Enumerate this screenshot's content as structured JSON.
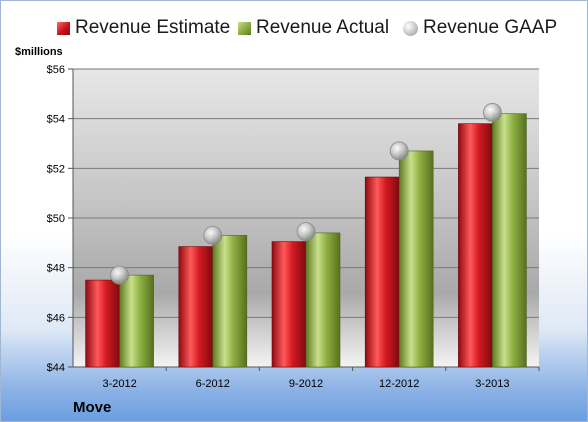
{
  "legend": {
    "estimate": "Revenue Estimate",
    "actual": "Revenue Actual",
    "gaap": "Revenue GAAP"
  },
  "unit_label": "$millions",
  "company": "Move",
  "colors": {
    "estimate": "#c8141c",
    "actual": "#8aab3e",
    "gaap": "#b5b5b5"
  },
  "chart_data": {
    "type": "bar",
    "title": "",
    "xlabel": "",
    "ylabel": "$millions",
    "categories": [
      "3-2012",
      "6-2012",
      "9-2012",
      "12-2012",
      "3-2013"
    ],
    "series": [
      {
        "name": "Revenue Estimate",
        "kind": "bar",
        "values": [
          47.5,
          48.85,
          49.05,
          51.65,
          53.8
        ]
      },
      {
        "name": "Revenue Actual",
        "kind": "bar",
        "values": [
          47.7,
          49.3,
          49.4,
          52.7,
          54.2
        ]
      },
      {
        "name": "Revenue GAAP",
        "kind": "marker",
        "values": [
          47.7,
          49.3,
          49.45,
          52.7,
          54.25
        ]
      }
    ],
    "ylim": [
      44,
      56
    ],
    "yticks": [
      44,
      46,
      48,
      50,
      52,
      54,
      56
    ],
    "ytick_labels": [
      "$44",
      "$46",
      "$48",
      "$50",
      "$52",
      "$54",
      "$56"
    ],
    "grid": true,
    "legend_position": "top"
  }
}
